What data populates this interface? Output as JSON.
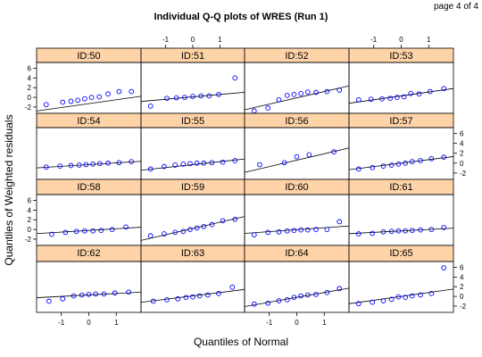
{
  "page_label": "page 4 of 4",
  "chart_data": {
    "type": "scatter",
    "title": "Individual Q-Q plots of WRES (Run 1)",
    "xlabel": "Quantiles of Normal",
    "ylabel": "Quantiles of Weighted residuals",
    "xlim": [
      -1.9,
      1.9
    ],
    "ylim": [
      -3.3,
      7.2
    ],
    "x_ticks": [
      -1,
      0,
      1
    ],
    "y_ticks": [
      -2,
      0,
      2,
      4,
      6
    ],
    "colors": {
      "points": "#0000ff",
      "strip": "#ffd3a8",
      "line": "#000000"
    },
    "panels": [
      {
        "id": "ID:50",
        "x": [
          -1.55,
          -0.95,
          -0.65,
          -0.4,
          -0.15,
          0.1,
          0.38,
          0.7,
          1.1,
          1.55
        ],
        "y": [
          -1.5,
          -1.0,
          -0.8,
          -0.6,
          -0.3,
          0.0,
          0.1,
          0.7,
          1.2,
          1.2
        ],
        "line": [
          -1.3,
          0.8
        ]
      },
      {
        "id": "ID:51",
        "x": [
          -1.55,
          -0.95,
          -0.6,
          -0.3,
          0.0,
          0.3,
          0.6,
          0.95,
          1.55
        ],
        "y": [
          -1.8,
          -0.2,
          -0.1,
          0.0,
          0.2,
          0.3,
          0.3,
          0.6,
          4.0
        ],
        "line": [
          0.1,
          0.5
        ]
      },
      {
        "id": "ID:52",
        "x": [
          -1.55,
          -1.05,
          -0.65,
          -0.35,
          -0.1,
          0.15,
          0.4,
          0.7,
          1.1,
          1.55
        ],
        "y": [
          -2.8,
          -2.2,
          -0.5,
          0.4,
          0.6,
          0.8,
          1.1,
          1.0,
          1.2,
          1.5
        ],
        "line": [
          -0.1,
          1.3
        ]
      },
      {
        "id": "ID:53",
        "x": [
          -1.55,
          -1.1,
          -0.7,
          -0.4,
          -0.15,
          0.1,
          0.35,
          0.65,
          1.05,
          1.55
        ],
        "y": [
          -0.5,
          -0.4,
          -0.3,
          -0.2,
          0.0,
          0.1,
          0.8,
          0.7,
          1.2,
          1.8
        ],
        "line": [
          0.3,
          0.8
        ]
      },
      {
        "id": "ID:54",
        "x": [
          -1.55,
          -1.05,
          -0.65,
          -0.35,
          -0.1,
          0.15,
          0.4,
          0.7,
          1.1,
          1.55
        ],
        "y": [
          -0.8,
          -0.6,
          -0.5,
          -0.4,
          -0.3,
          -0.2,
          -0.1,
          0.0,
          0.1,
          0.3
        ],
        "line": [
          -0.3,
          0.35
        ]
      },
      {
        "id": "ID:55",
        "x": [
          -1.55,
          -1.05,
          -0.65,
          -0.35,
          -0.1,
          0.15,
          0.4,
          0.7,
          1.1,
          1.55
        ],
        "y": [
          -1.2,
          -0.7,
          -0.4,
          -0.2,
          -0.1,
          0.0,
          0.0,
          0.1,
          0.2,
          0.5
        ],
        "line": [
          -0.3,
          0.6
        ]
      },
      {
        "id": "ID:56",
        "x": [
          -1.35,
          -0.45,
          0.0,
          0.45,
          1.35
        ],
        "y": [
          -0.3,
          0.1,
          1.3,
          1.7,
          2.3
        ],
        "line": [
          0.6,
          1.3
        ]
      },
      {
        "id": "ID:57",
        "x": [
          -1.55,
          -1.05,
          -0.65,
          -0.35,
          -0.1,
          0.15,
          0.4,
          0.7,
          1.1,
          1.55
        ],
        "y": [
          -1.2,
          -0.9,
          -0.6,
          -0.4,
          -0.2,
          0.0,
          0.3,
          0.5,
          0.9,
          1.2
        ],
        "line": [
          0.0,
          0.7
        ]
      },
      {
        "id": "ID:58",
        "x": [
          -1.35,
          -0.85,
          -0.45,
          -0.15,
          0.15,
          0.45,
          0.85,
          1.35
        ],
        "y": [
          -1.0,
          -0.6,
          -0.4,
          -0.3,
          -0.3,
          -0.2,
          0.0,
          0.5
        ],
        "line": [
          -0.2,
          0.35
        ]
      },
      {
        "id": "ID:59",
        "x": [
          -1.55,
          -1.05,
          -0.65,
          -0.35,
          -0.1,
          0.15,
          0.4,
          0.7,
          1.1,
          1.55
        ],
        "y": [
          -1.3,
          -0.9,
          -0.6,
          -0.4,
          0.0,
          0.3,
          0.6,
          1.0,
          1.8,
          2.1
        ],
        "line": [
          0.2,
          1.3
        ]
      },
      {
        "id": "ID:60",
        "x": [
          -1.55,
          -1.05,
          -0.65,
          -0.35,
          -0.1,
          0.15,
          0.4,
          0.7,
          1.1,
          1.55
        ],
        "y": [
          -1.1,
          -0.6,
          -0.5,
          -0.3,
          -0.2,
          -0.1,
          -0.1,
          0.0,
          0.0,
          1.6
        ],
        "line": [
          -0.05,
          0.4
        ]
      },
      {
        "id": "ID:61",
        "x": [
          -1.55,
          -1.05,
          -0.65,
          -0.35,
          -0.1,
          0.15,
          0.4,
          0.7,
          1.1,
          1.55
        ],
        "y": [
          -0.9,
          -0.8,
          -0.5,
          -0.4,
          -0.3,
          -0.3,
          -0.2,
          -0.1,
          0.0,
          0.4
        ],
        "line": [
          -0.3,
          0.3
        ]
      },
      {
        "id": "ID:62",
        "x": [
          -1.45,
          -0.95,
          -0.55,
          -0.25,
          0.0,
          0.25,
          0.55,
          0.95,
          1.45
        ],
        "y": [
          -1.0,
          -0.5,
          0.1,
          0.3,
          0.4,
          0.5,
          0.5,
          0.7,
          0.9
        ],
        "line": [
          0.3,
          0.3
        ]
      },
      {
        "id": "ID:63",
        "x": [
          -1.45,
          -0.95,
          -0.55,
          -0.25,
          0.0,
          0.25,
          0.55,
          0.95,
          1.45
        ],
        "y": [
          -1.0,
          -0.7,
          -0.5,
          -0.2,
          -0.1,
          0.1,
          0.3,
          0.6,
          1.9
        ],
        "line": [
          0.1,
          0.7
        ]
      },
      {
        "id": "ID:64",
        "x": [
          -1.55,
          -1.05,
          -0.65,
          -0.35,
          -0.1,
          0.15,
          0.4,
          0.7,
          1.1,
          1.55
        ],
        "y": [
          -1.6,
          -1.4,
          -0.9,
          -0.7,
          -0.2,
          0.1,
          0.3,
          0.4,
          0.8,
          1.6
        ],
        "line": [
          -0.2,
          1.0
        ]
      },
      {
        "id": "ID:65",
        "x": [
          -1.55,
          -1.05,
          -0.65,
          -0.35,
          -0.1,
          0.15,
          0.4,
          0.7,
          1.1,
          1.55
        ],
        "y": [
          -1.5,
          -1.2,
          -0.9,
          -0.6,
          -0.1,
          -0.2,
          0.1,
          0.3,
          0.6,
          5.9
        ],
        "line": [
          0.0,
          0.8
        ]
      }
    ]
  }
}
